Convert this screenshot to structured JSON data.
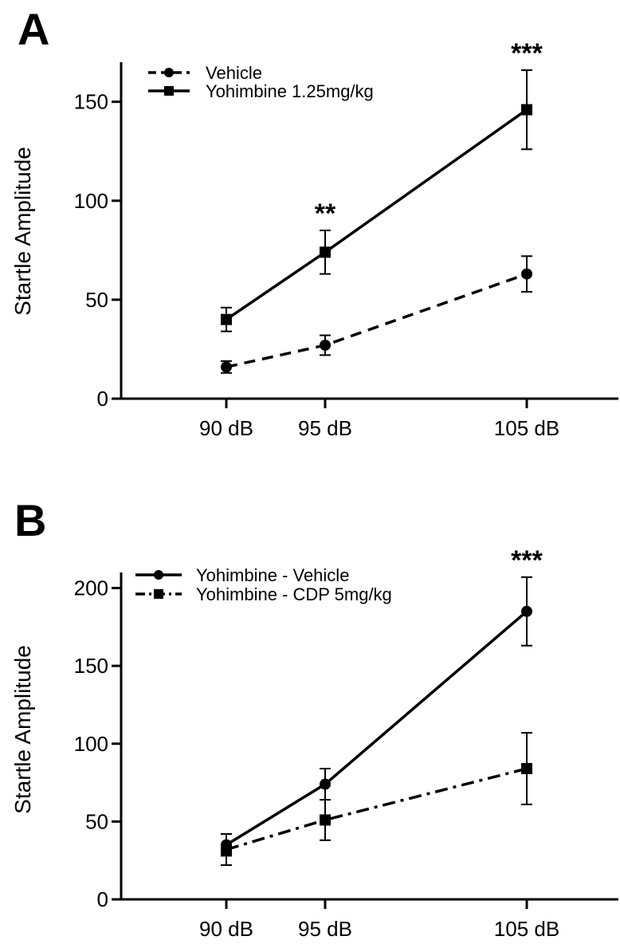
{
  "chart_data": [
    {
      "panel": "A",
      "type": "line",
      "ylabel": "Startle Amplitude",
      "xlabel": "",
      "x": [
        90,
        95,
        105
      ],
      "x_tick_labels": [
        "90 dB",
        "95 dB",
        "105 dB"
      ],
      "ylim": [
        0,
        170
      ],
      "y_ticks": [
        0,
        50,
        100,
        150
      ],
      "legend_position": "top-left",
      "series": [
        {
          "name": "Vehicle",
          "style": "dashed",
          "marker": "circle",
          "values": [
            16,
            27,
            63
          ],
          "errors": [
            3,
            5,
            9
          ]
        },
        {
          "name": "Yohimbine 1.25mg/kg",
          "style": "solid",
          "marker": "square",
          "values": [
            40,
            74,
            146
          ],
          "errors": [
            6,
            11,
            20
          ]
        }
      ],
      "annotations": [
        {
          "x": 95,
          "text": "**"
        },
        {
          "x": 105,
          "text": "***"
        }
      ]
    },
    {
      "panel": "B",
      "type": "line",
      "ylabel": "Startle Amplitude",
      "xlabel": "",
      "x": [
        90,
        95,
        105
      ],
      "x_tick_labels": [
        "90 dB",
        "95 dB",
        "105 dB"
      ],
      "ylim": [
        0,
        210
      ],
      "y_ticks": [
        0,
        50,
        100,
        150,
        200
      ],
      "legend_position": "top-left",
      "series": [
        {
          "name": "Yohimbine - Vehicle",
          "style": "solid",
          "marker": "circle",
          "values": [
            35,
            74,
            185
          ],
          "errors": [
            7,
            10,
            22
          ]
        },
        {
          "name": "Yohimbine - CDP 5mg/kg",
          "style": "dashdot",
          "marker": "square",
          "values": [
            32,
            51,
            84
          ],
          "errors": [
            10,
            13,
            23
          ]
        }
      ],
      "annotations": [
        {
          "x": 105,
          "text": "***"
        }
      ]
    }
  ]
}
